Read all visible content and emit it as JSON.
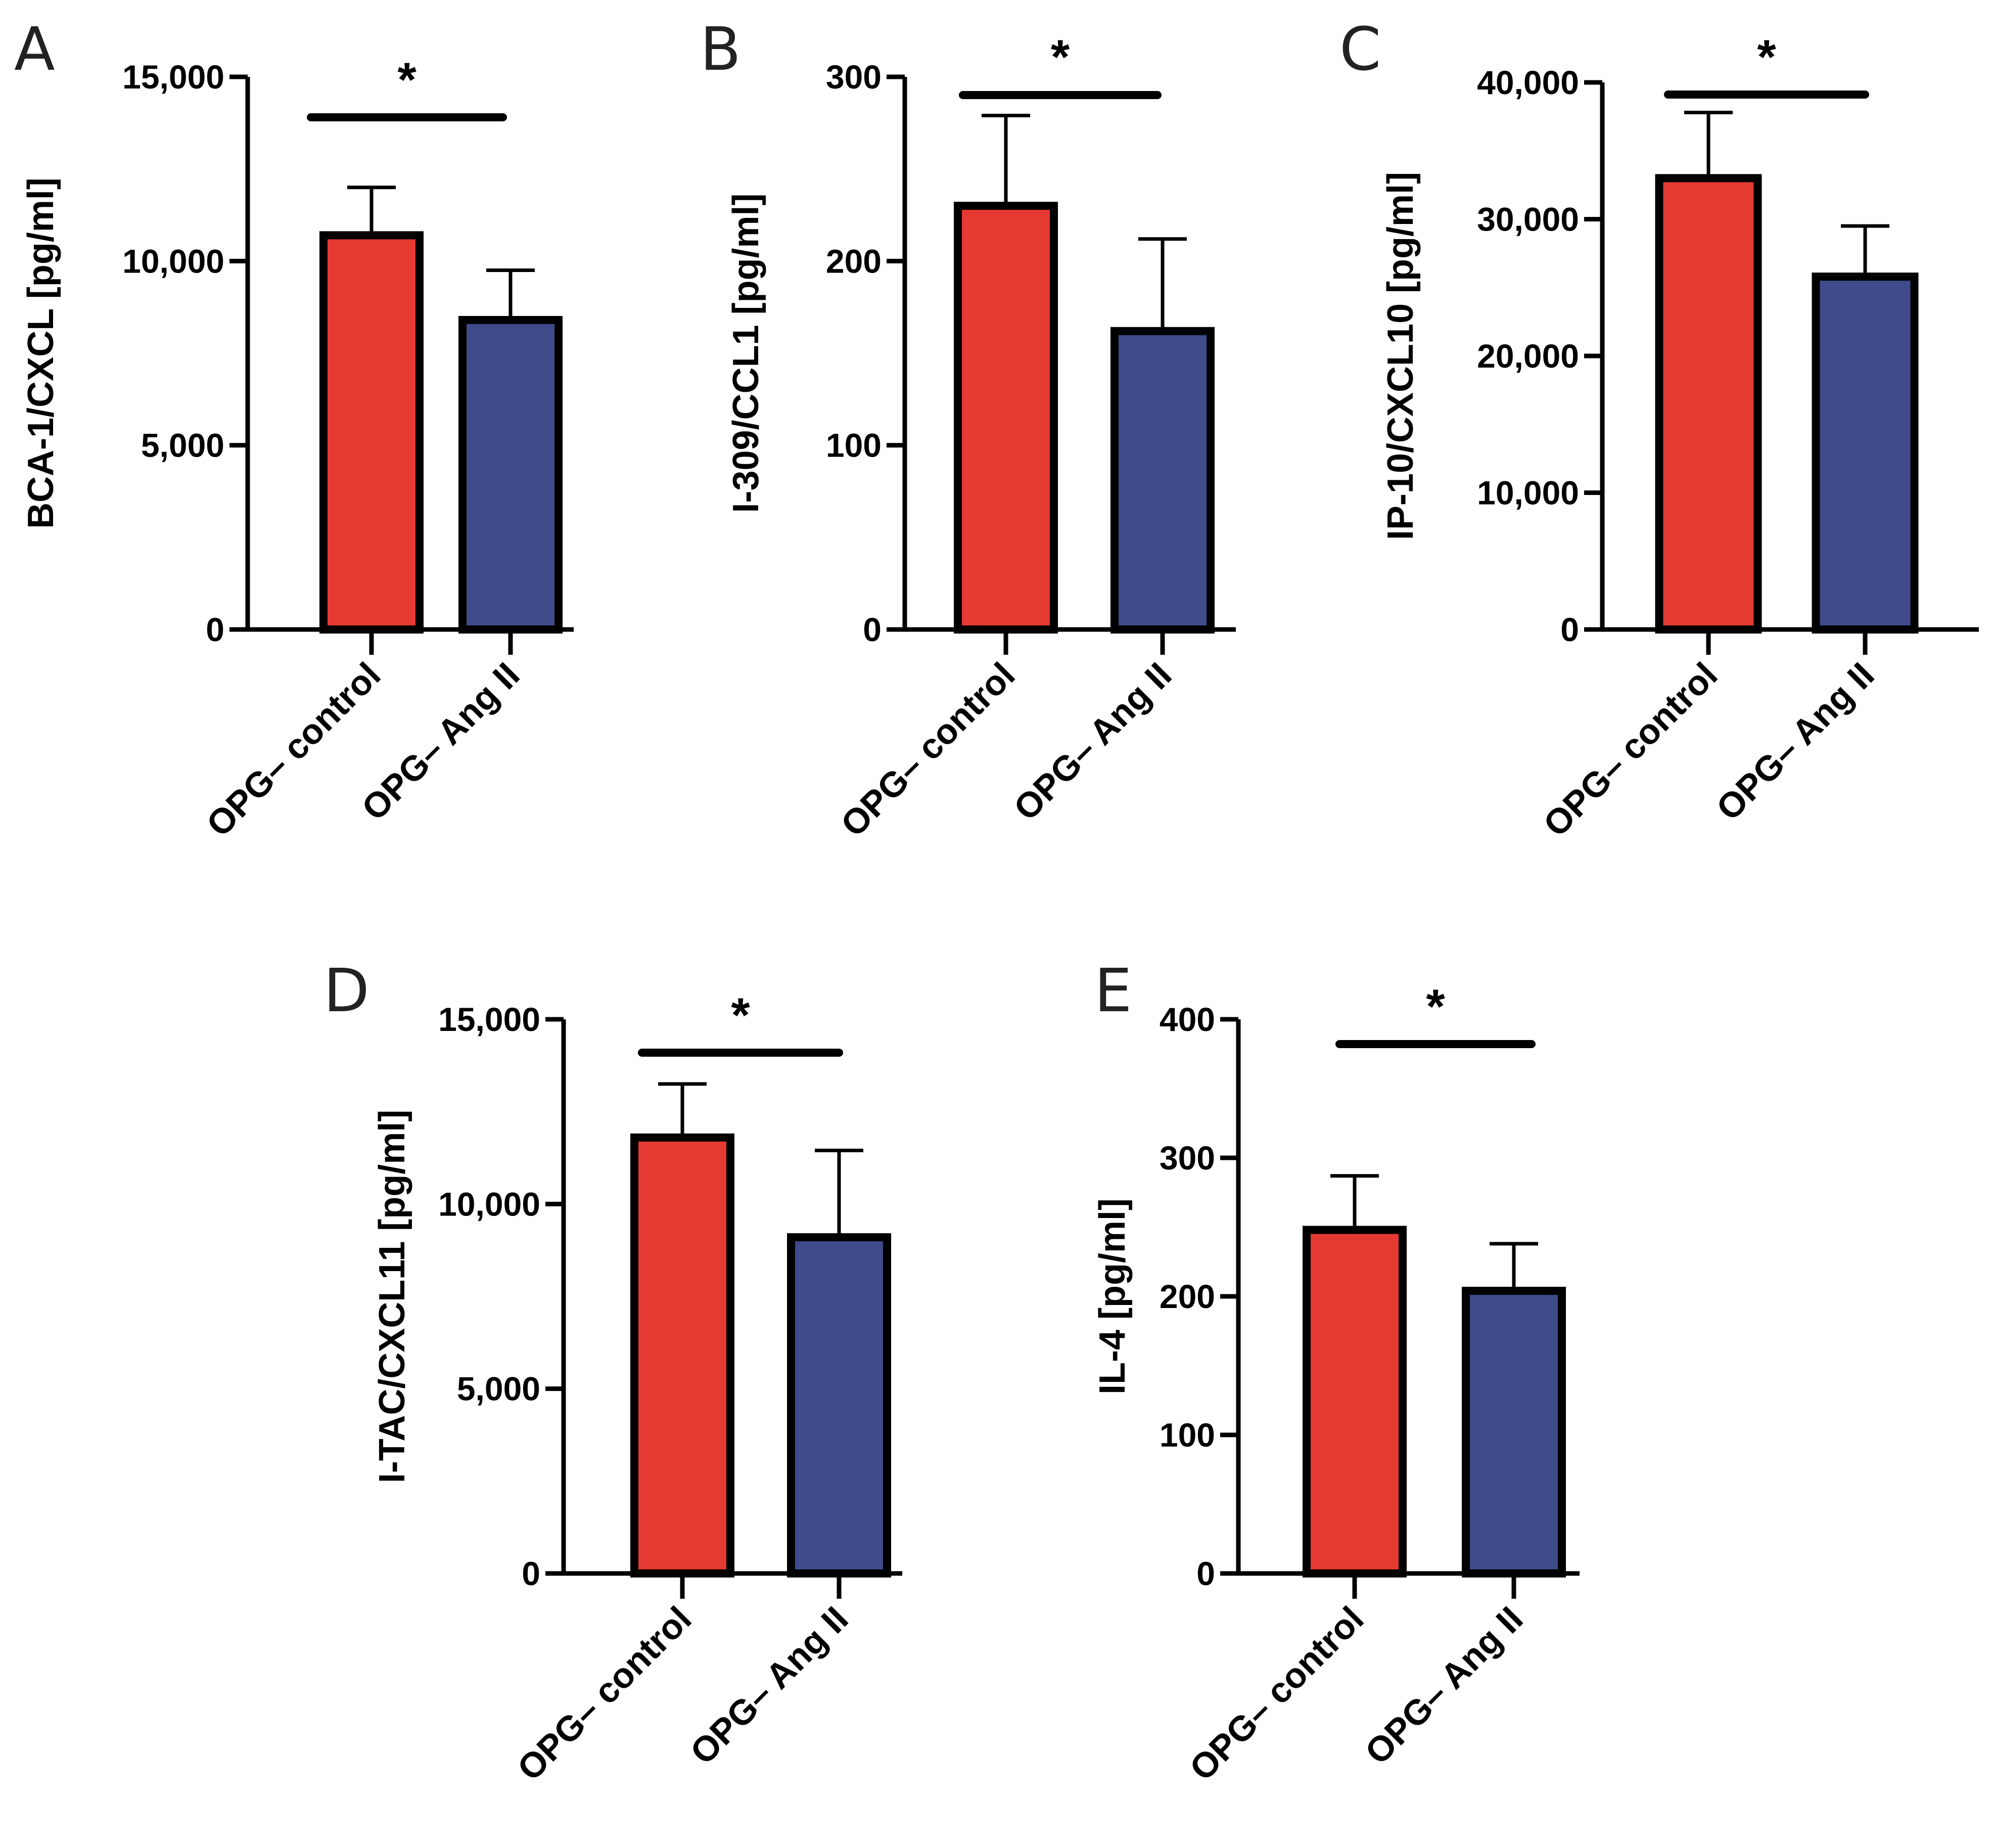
{
  "colors": {
    "control": "#e43a32",
    "angII": "#3f4b8a",
    "stroke": "#000000"
  },
  "chart_data": [
    {
      "type": "bar",
      "panel": "A",
      "ylabel": "BCA-1/CXCL [pg/ml]",
      "ylim": [
        0,
        15000
      ],
      "yticks": [
        0,
        5000,
        10000,
        15000
      ],
      "ytick_labels": [
        "0",
        "5,000",
        "10,000",
        "15,000"
      ],
      "categories": [
        "OPG– control",
        "OPG– Ang II"
      ],
      "values": [
        10700,
        8400
      ],
      "errors": [
        1300,
        1350
      ],
      "significance": "*"
    },
    {
      "type": "bar",
      "panel": "B",
      "ylabel": "I-309/CCL1 [pg/ml]",
      "ylim": [
        0,
        300
      ],
      "yticks": [
        0,
        100,
        200,
        300
      ],
      "ytick_labels": [
        "0",
        "100",
        "200",
        "300"
      ],
      "categories": [
        "OPG– control",
        "OPG– Ang II"
      ],
      "values": [
        230,
        162
      ],
      "errors": [
        49,
        50
      ],
      "significance": "*"
    },
    {
      "type": "bar",
      "panel": "C",
      "ylabel": "IP-10/CXCL10 [pg/ml]",
      "ylim": [
        0,
        40000
      ],
      "yticks": [
        0,
        10000,
        20000,
        30000,
        40000
      ],
      "ytick_labels": [
        "0",
        "10,000",
        "20,000",
        "30,000",
        "40,000"
      ],
      "categories": [
        "OPG– control",
        "OPG– Ang II"
      ],
      "values": [
        33000,
        25800
      ],
      "errors": [
        4800,
        3700
      ],
      "significance": "*"
    },
    {
      "type": "bar",
      "panel": "D",
      "ylabel": "I-TAC/CXCL11 [pg/ml]",
      "ylim": [
        0,
        15000
      ],
      "yticks": [
        0,
        5000,
        10000,
        15000
      ],
      "ytick_labels": [
        "0",
        "5,000",
        "10,000",
        "15,000"
      ],
      "categories": [
        "OPG– control",
        "OPG– Ang II"
      ],
      "values": [
        11800,
        9100
      ],
      "errors": [
        1450,
        2350
      ],
      "significance": "*"
    },
    {
      "type": "bar",
      "panel": "E",
      "ylabel": "IL-4 [pg/ml]",
      "ylim": [
        0,
        400
      ],
      "yticks": [
        0,
        100,
        200,
        300,
        400
      ],
      "ytick_labels": [
        "0",
        "100",
        "200",
        "300",
        "400"
      ],
      "categories": [
        "OPG– control",
        "OPG– Ang II"
      ],
      "values": [
        248,
        204
      ],
      "errors": [
        39,
        34
      ],
      "significance": "*"
    }
  ]
}
